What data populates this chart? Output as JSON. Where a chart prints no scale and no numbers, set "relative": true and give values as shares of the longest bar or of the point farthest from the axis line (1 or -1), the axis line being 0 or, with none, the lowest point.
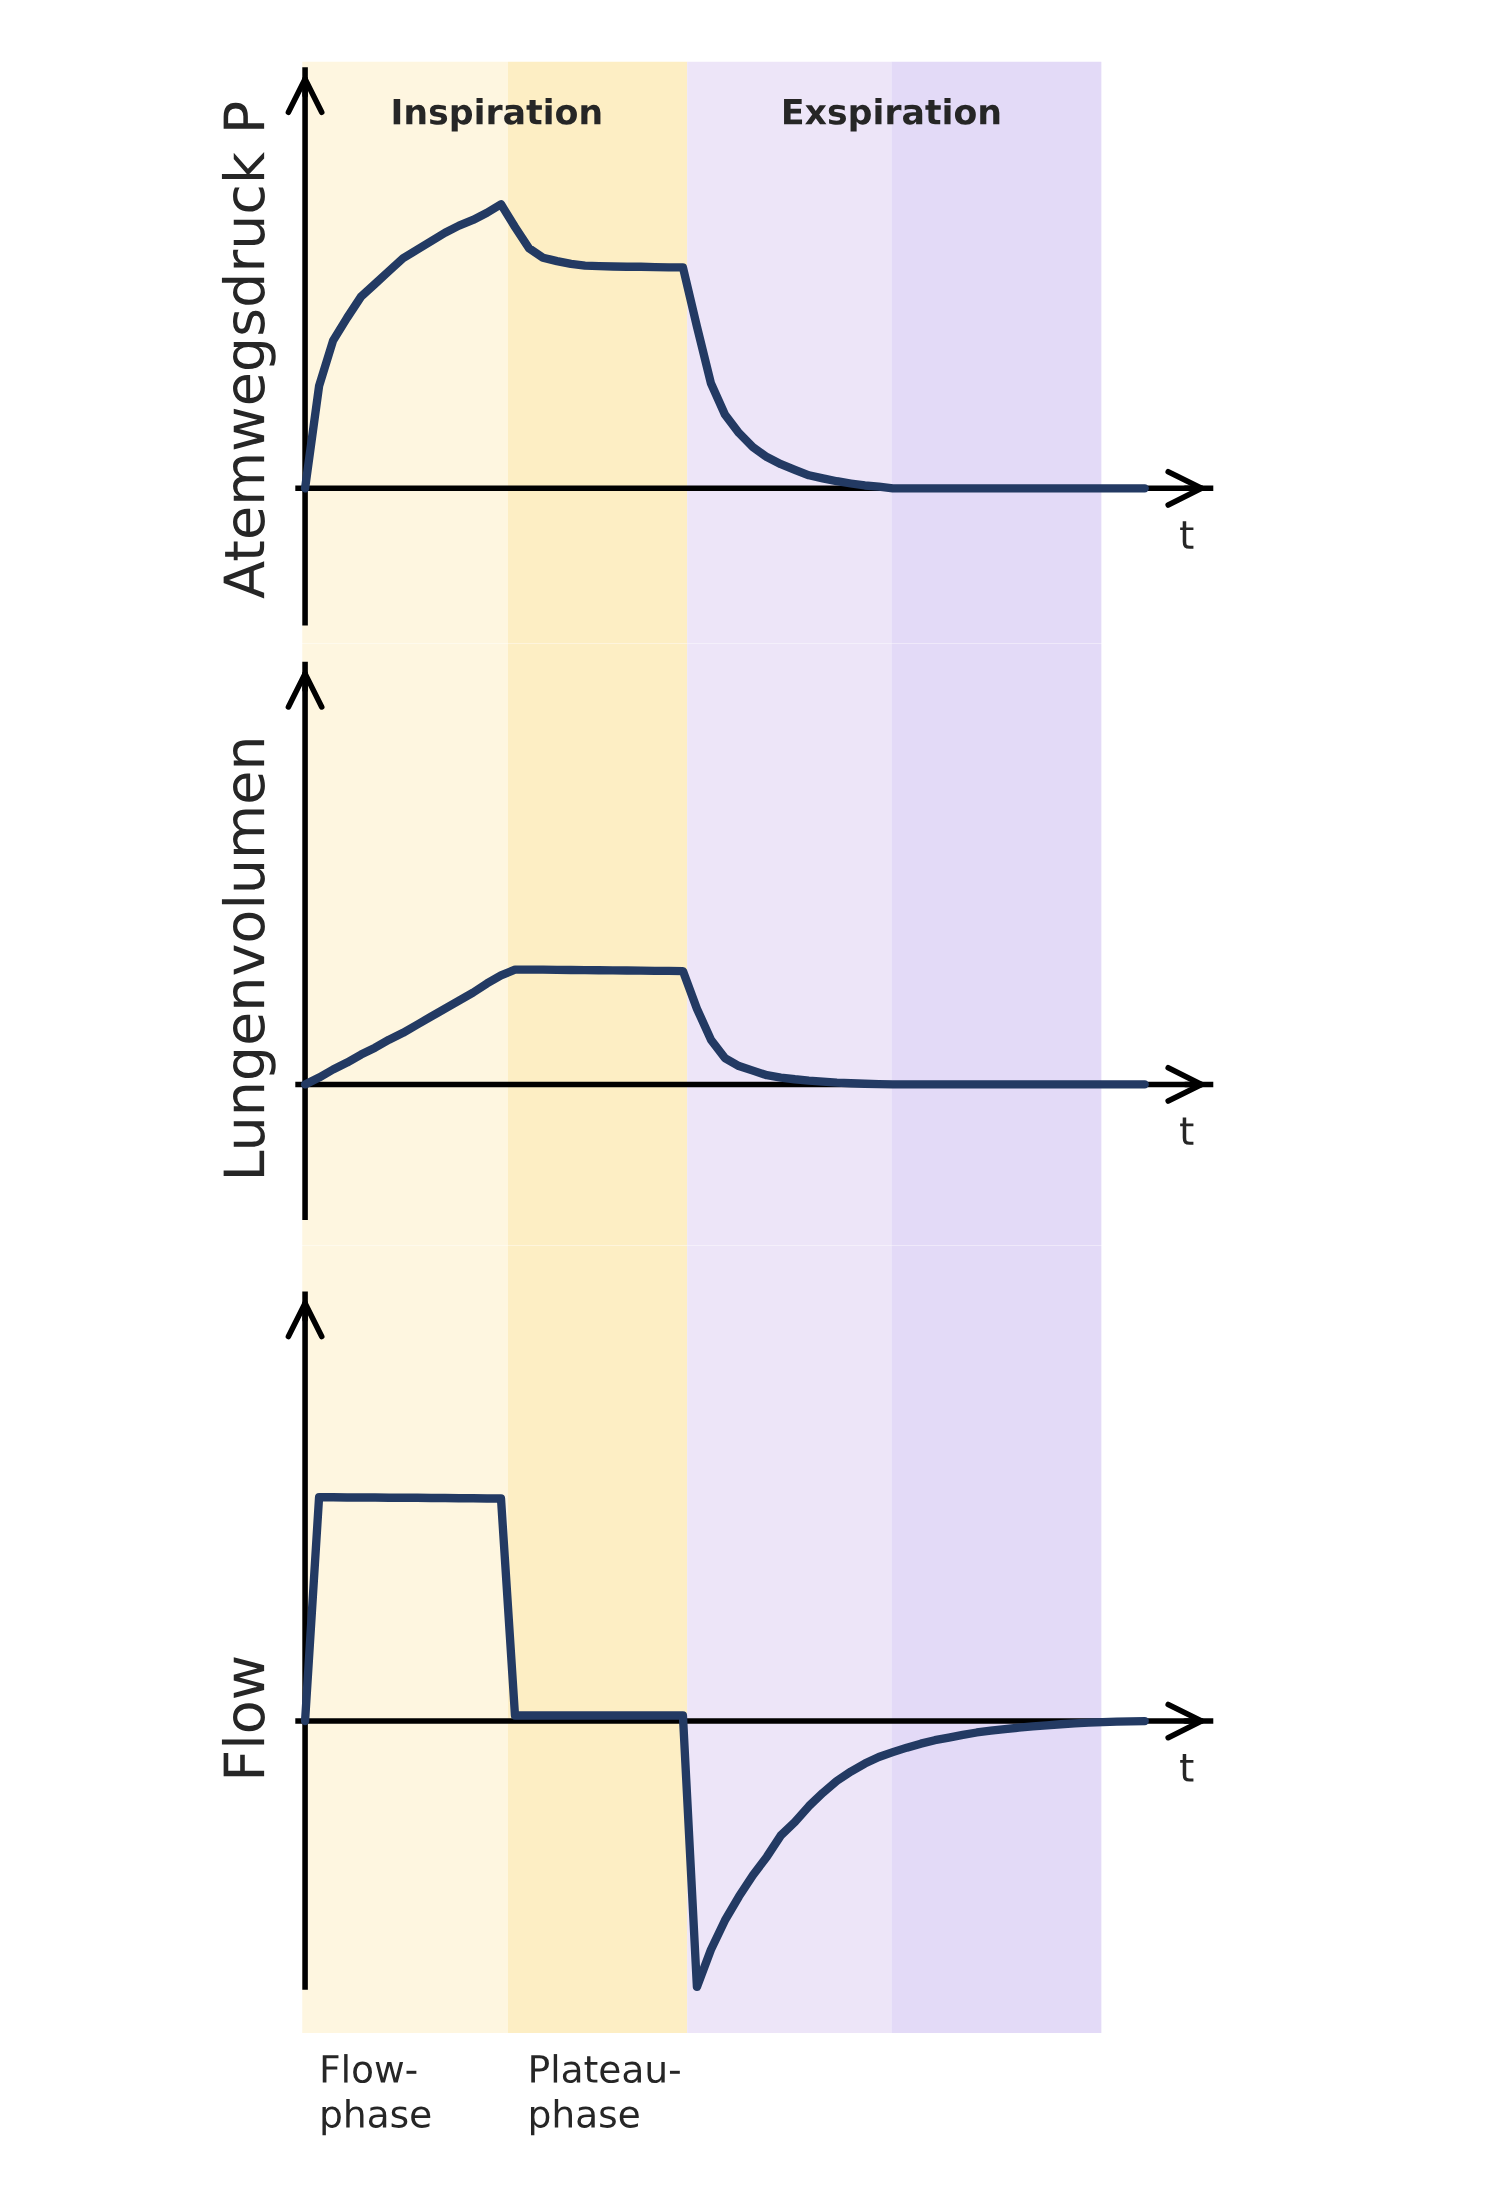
{
  "chart_data": [
    {
      "type": "line",
      "ylabel": "Atemwegsdruck P",
      "xlabel": "t",
      "relative": true,
      "line_style": "solid",
      "annotations": [
        "Inspiration",
        "Exspiration"
      ],
      "categories": [
        null,
        null,
        null,
        null,
        null,
        null,
        null,
        null,
        null,
        null,
        null,
        null,
        null,
        null,
        null,
        null,
        null,
        null,
        null,
        null,
        null,
        null,
        null,
        null,
        null,
        null,
        null,
        null,
        null,
        null,
        null,
        null,
        null,
        null,
        null,
        null,
        null,
        null,
        null,
        null,
        null,
        null,
        null,
        null,
        null,
        null,
        null,
        null,
        null,
        null,
        null,
        null,
        null,
        null,
        null,
        null,
        null,
        null,
        null,
        null,
        null
      ],
      "series": [
        {
          "color": "#233a63",
          "values": [
            0,
            0.36,
            0.52,
            0.6,
            0.675,
            0.72,
            0.765,
            0.81,
            0.84,
            0.87,
            0.9,
            0.925,
            0.945,
            0.97,
            1.0,
            0.92,
            0.845,
            0.812,
            0.8,
            0.79,
            0.784,
            0.782,
            0.781,
            0.78,
            0.78,
            0.779,
            0.778,
            0.778,
            0.57,
            0.37,
            0.26,
            0.195,
            0.145,
            0.11,
            0.085,
            0.065,
            0.046,
            0.035,
            0.025,
            0.017,
            0.01,
            0.006,
            0,
            0,
            0,
            0,
            0,
            0,
            0,
            0,
            0,
            0,
            0,
            0,
            0,
            0,
            0,
            0,
            0,
            0,
            0
          ]
        }
      ]
    },
    {
      "type": "line",
      "ylabel": "Lungenvolumen",
      "xlabel": "t",
      "relative": true,
      "line_style": "solid",
      "categories": [
        null,
        null,
        null,
        null,
        null,
        null,
        null,
        null,
        null,
        null,
        null,
        null,
        null,
        null,
        null,
        null,
        null,
        null,
        null,
        null,
        null,
        null,
        null,
        null,
        null,
        null,
        null,
        null,
        null,
        null,
        null,
        null,
        null,
        null,
        null,
        null,
        null,
        null,
        null,
        null,
        null,
        null,
        null,
        null,
        null,
        null,
        null,
        null,
        null,
        null,
        null,
        null,
        null,
        null,
        null,
        null,
        null,
        null,
        null,
        null,
        null
      ],
      "series": [
        {
          "color": "#233a63",
          "values": [
            0,
            0.06,
            0.13,
            0.19,
            0.26,
            0.32,
            0.39,
            0.45,
            0.52,
            0.59,
            0.66,
            0.73,
            0.8,
            0.88,
            0.95,
            1.0,
            1.0,
            1.0,
            0.998,
            0.997,
            0.996,
            0.995,
            0.994,
            0.993,
            0.992,
            0.99,
            0.989,
            0.988,
            0.66,
            0.39,
            0.23,
            0.16,
            0.12,
            0.08,
            0.06,
            0.045,
            0.033,
            0.024,
            0.015,
            0.01,
            0.006,
            0.003,
            0,
            0,
            0,
            0,
            0,
            0,
            0,
            0,
            0,
            0,
            0,
            0,
            0,
            0,
            0,
            0,
            0,
            0,
            0
          ]
        }
      ]
    },
    {
      "type": "line",
      "ylabel": "Flow",
      "xlabel": "t",
      "relative": true,
      "line_style": "solid",
      "annotations": [
        "Flow-\nphase",
        "Plateau-\nphase"
      ],
      "categories": [
        null,
        null,
        null,
        null,
        null,
        null,
        null,
        null,
        null,
        null,
        null,
        null,
        null,
        null,
        null,
        null,
        null,
        null,
        null,
        null,
        null,
        null,
        null,
        null,
        null,
        null,
        null,
        null,
        null,
        null,
        null,
        null,
        null,
        null,
        null,
        null,
        null,
        null,
        null,
        null,
        null,
        null,
        null,
        null,
        null,
        null,
        null,
        null,
        null,
        null,
        null,
        null,
        null,
        null,
        null,
        null,
        null,
        null,
        null,
        null,
        null
      ],
      "series": [
        {
          "color": "#233a63",
          "values": [
            0,
            0.842,
            0.842,
            0.841,
            0.841,
            0.841,
            0.84,
            0.84,
            0.84,
            0.839,
            0.839,
            0.838,
            0.838,
            0.837,
            0.837,
            0.021,
            0.021,
            0.021,
            0.021,
            0.021,
            0.021,
            0.021,
            0.021,
            0.021,
            0.021,
            0.021,
            0.021,
            0.021,
            -1.0,
            -0.86,
            -0.75,
            -0.66,
            -0.58,
            -0.51,
            -0.43,
            -0.38,
            -0.32,
            -0.27,
            -0.225,
            -0.19,
            -0.16,
            -0.135,
            -0.117,
            -0.1,
            -0.085,
            -0.072,
            -0.062,
            -0.052,
            -0.043,
            -0.036,
            -0.03,
            -0.025,
            -0.02,
            -0.016,
            -0.012,
            -0.009,
            -0.006,
            -0.004,
            -0.002,
            -0.001,
            0
          ]
        }
      ]
    }
  ]
}
